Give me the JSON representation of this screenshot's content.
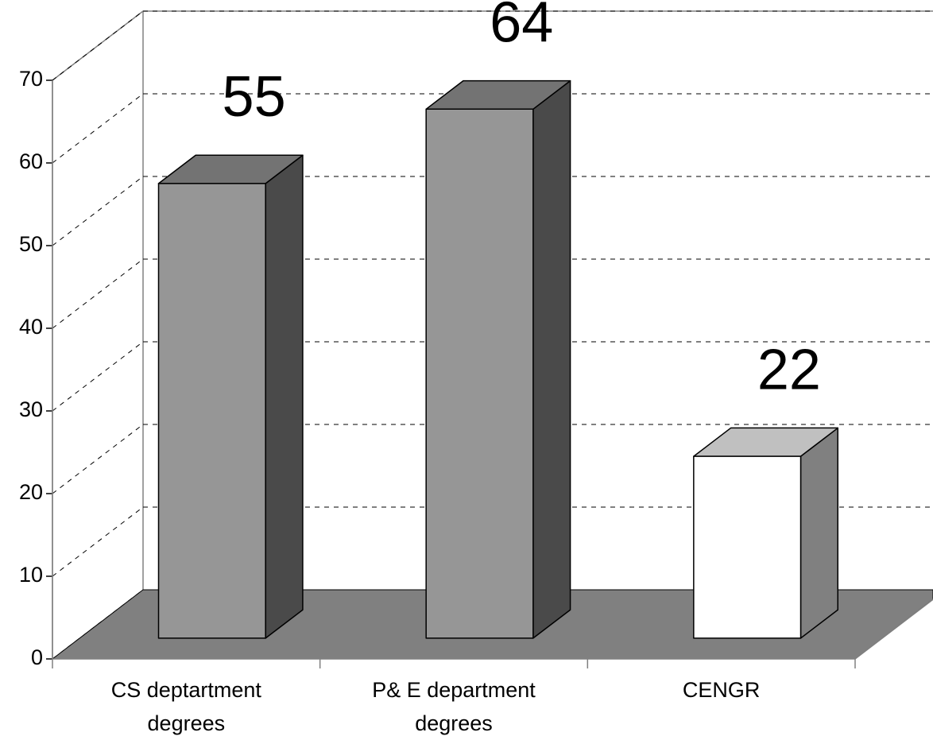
{
  "chart_data": {
    "type": "bar3d",
    "categories": [
      [
        "CS deptartment",
        "degrees"
      ],
      [
        "P& E department",
        "degrees"
      ],
      [
        "CENGR"
      ]
    ],
    "values": [
      55,
      64,
      22
    ],
    "colors": [
      {
        "front": "#969696",
        "top": "#737373",
        "side": "#4a4a4a"
      },
      {
        "front": "#969696",
        "top": "#737373",
        "side": "#4a4a4a"
      },
      {
        "front": "#ffffff",
        "top": "#c0c0c0",
        "side": "#808080"
      }
    ],
    "floor_color": "#808080",
    "ylim": [
      0,
      70
    ],
    "yticks": [
      0,
      10,
      20,
      30,
      40,
      50,
      60,
      70
    ],
    "grid": true
  }
}
